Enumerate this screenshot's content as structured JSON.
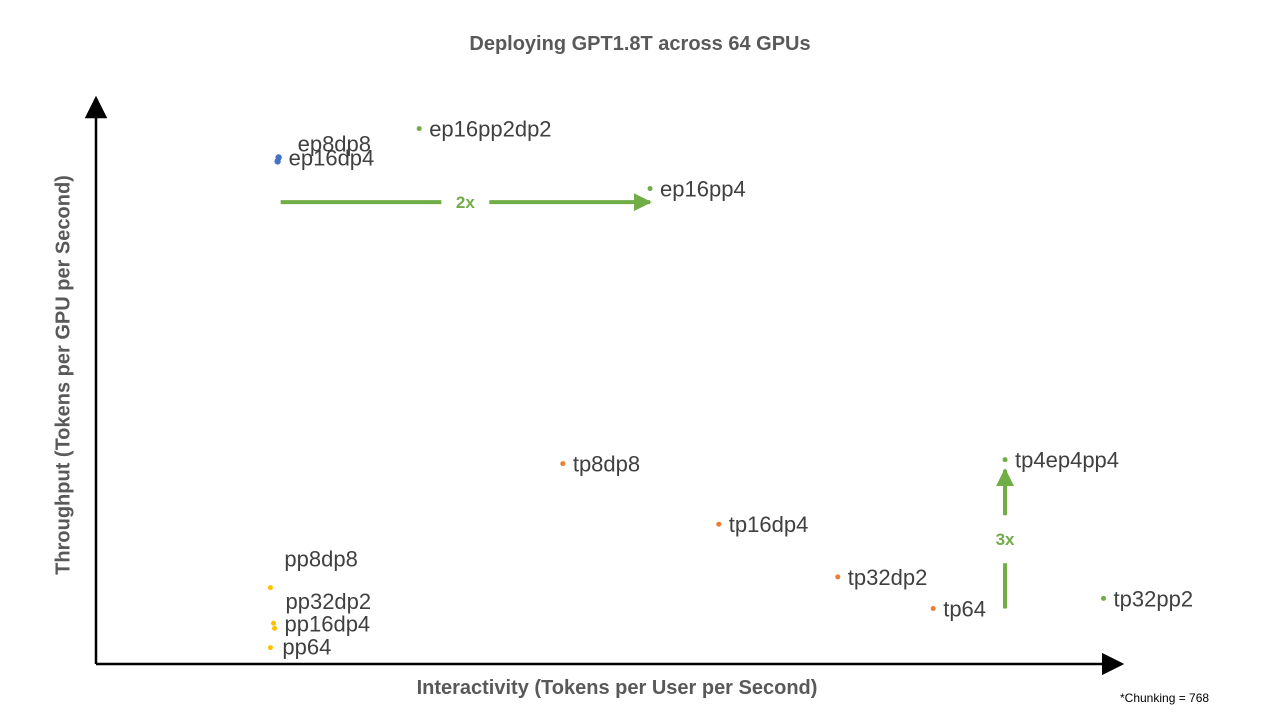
{
  "chart_data": {
    "type": "scatter",
    "title": "Deploying GPT1.8T across 64 GPUs",
    "xlabel": "Interactivity (Tokens per User per Second)",
    "ylabel": "Throughput (Tokens per GPU per Second)",
    "footnote": "*Chunking = 768",
    "grid": false,
    "legend": "none",
    "colors": {
      "blue": "#4472C4",
      "green": "#70AD47",
      "orange": "#ED7D31",
      "yellow": "#FFC000",
      "axis": "#000000",
      "text": "#404040"
    },
    "points": [
      {
        "label": "ep16pp2dp2",
        "color": "green",
        "x": 0.315,
        "y": 0.946
      },
      {
        "label": "ep16dp4",
        "color": "blue",
        "x": 0.178,
        "y": 0.895
      },
      {
        "label": "ep8dp8",
        "color": "blue",
        "x": 0.177,
        "y": 0.888
      },
      {
        "label": "ep16pp4",
        "color": "green",
        "x": 0.54,
        "y": 0.84
      },
      {
        "label": "tp8dp8",
        "color": "orange",
        "x": 0.455,
        "y": 0.354
      },
      {
        "label": "tp16dp4",
        "color": "orange",
        "x": 0.607,
        "y": 0.247
      },
      {
        "label": "tp32dp2",
        "color": "orange",
        "x": 0.723,
        "y": 0.154
      },
      {
        "label": "tp64",
        "color": "orange",
        "x": 0.816,
        "y": 0.098
      },
      {
        "label": "tp4ep4pp4",
        "color": "green",
        "x": 0.886,
        "y": 0.361
      },
      {
        "label": "tp32pp2",
        "color": "green",
        "x": 0.982,
        "y": 0.116
      },
      {
        "label": "pp8dp8",
        "color": "yellow",
        "x": 0.17,
        "y": 0.135
      },
      {
        "label": "pp32dp2",
        "color": "yellow",
        "x": 0.173,
        "y": 0.072
      },
      {
        "label": "pp16dp4",
        "color": "yellow",
        "x": 0.174,
        "y": 0.063
      },
      {
        "label": "pp64",
        "color": "yellow",
        "x": 0.17,
        "y": 0.029
      }
    ],
    "annotations": [
      {
        "text": "2x",
        "color": "green",
        "from": {
          "x": 0.18,
          "y": 0.816
        },
        "to": {
          "x": 0.54,
          "y": 0.816
        }
      },
      {
        "text": "3x",
        "color": "green",
        "from": {
          "x": 0.886,
          "y": 0.098
        },
        "to": {
          "x": 0.886,
          "y": 0.343
        }
      }
    ]
  }
}
